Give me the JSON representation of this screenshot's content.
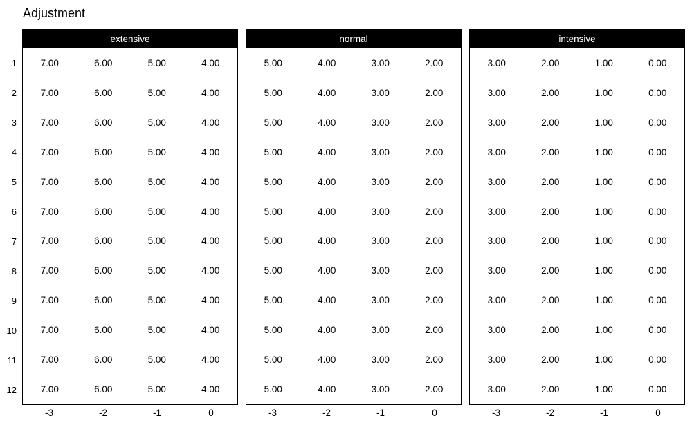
{
  "title": "Adjustment",
  "colors": {
    "background": "#ffffff",
    "panel_header_bg": "#000000",
    "panel_header_text": "#ffffff",
    "border": "#000000",
    "text": "#000000"
  },
  "chart_data": {
    "type": "table",
    "title": "Adjustment",
    "layout": "three side-by-side matrices with black title bars, shared y row labels on far left, x tick labels under each panel",
    "row_labels": [
      "1",
      "2",
      "3",
      "4",
      "5",
      "6",
      "7",
      "8",
      "9",
      "10",
      "11",
      "12"
    ],
    "x_tick_labels": [
      "-3",
      "-2",
      "-1",
      "0"
    ],
    "panels": [
      {
        "label": "extensive",
        "values": [
          [
            "7.00",
            "6.00",
            "5.00",
            "4.00"
          ],
          [
            "7.00",
            "6.00",
            "5.00",
            "4.00"
          ],
          [
            "7.00",
            "6.00",
            "5.00",
            "4.00"
          ],
          [
            "7.00",
            "6.00",
            "5.00",
            "4.00"
          ],
          [
            "7.00",
            "6.00",
            "5.00",
            "4.00"
          ],
          [
            "7.00",
            "6.00",
            "5.00",
            "4.00"
          ],
          [
            "7.00",
            "6.00",
            "5.00",
            "4.00"
          ],
          [
            "7.00",
            "6.00",
            "5.00",
            "4.00"
          ],
          [
            "7.00",
            "6.00",
            "5.00",
            "4.00"
          ],
          [
            "7.00",
            "6.00",
            "5.00",
            "4.00"
          ],
          [
            "7.00",
            "6.00",
            "5.00",
            "4.00"
          ],
          [
            "7.00",
            "6.00",
            "5.00",
            "4.00"
          ]
        ]
      },
      {
        "label": "normal",
        "values": [
          [
            "5.00",
            "4.00",
            "3.00",
            "2.00"
          ],
          [
            "5.00",
            "4.00",
            "3.00",
            "2.00"
          ],
          [
            "5.00",
            "4.00",
            "3.00",
            "2.00"
          ],
          [
            "5.00",
            "4.00",
            "3.00",
            "2.00"
          ],
          [
            "5.00",
            "4.00",
            "3.00",
            "2.00"
          ],
          [
            "5.00",
            "4.00",
            "3.00",
            "2.00"
          ],
          [
            "5.00",
            "4.00",
            "3.00",
            "2.00"
          ],
          [
            "5.00",
            "4.00",
            "3.00",
            "2.00"
          ],
          [
            "5.00",
            "4.00",
            "3.00",
            "2.00"
          ],
          [
            "5.00",
            "4.00",
            "3.00",
            "2.00"
          ],
          [
            "5.00",
            "4.00",
            "3.00",
            "2.00"
          ],
          [
            "5.00",
            "4.00",
            "3.00",
            "2.00"
          ]
        ]
      },
      {
        "label": "intensive",
        "values": [
          [
            "3.00",
            "2.00",
            "1.00",
            "0.00"
          ],
          [
            "3.00",
            "2.00",
            "1.00",
            "0.00"
          ],
          [
            "3.00",
            "2.00",
            "1.00",
            "0.00"
          ],
          [
            "3.00",
            "2.00",
            "1.00",
            "0.00"
          ],
          [
            "3.00",
            "2.00",
            "1.00",
            "0.00"
          ],
          [
            "3.00",
            "2.00",
            "1.00",
            "0.00"
          ],
          [
            "3.00",
            "2.00",
            "1.00",
            "0.00"
          ],
          [
            "3.00",
            "2.00",
            "1.00",
            "0.00"
          ],
          [
            "3.00",
            "2.00",
            "1.00",
            "0.00"
          ],
          [
            "3.00",
            "2.00",
            "1.00",
            "0.00"
          ],
          [
            "3.00",
            "2.00",
            "1.00",
            "0.00"
          ],
          [
            "3.00",
            "2.00",
            "1.00",
            "0.00"
          ]
        ]
      }
    ]
  }
}
